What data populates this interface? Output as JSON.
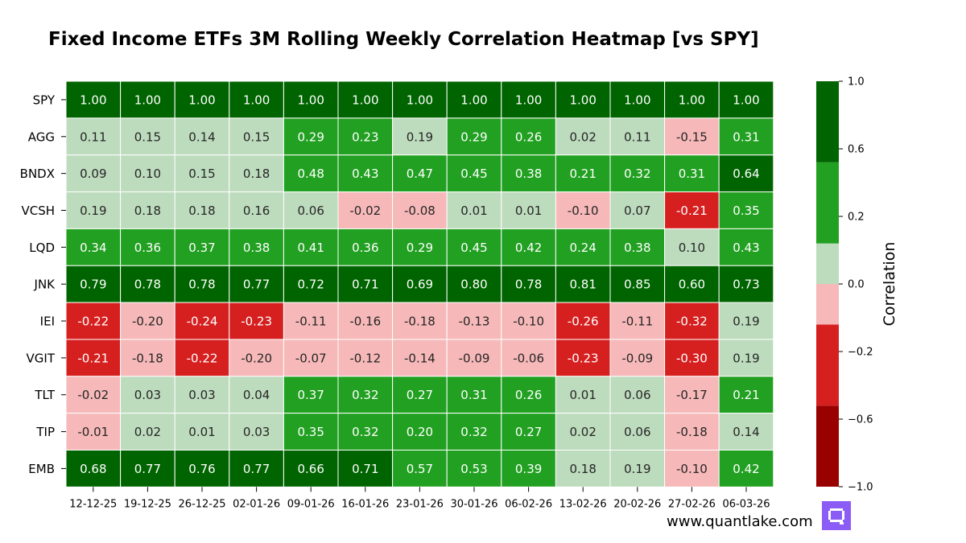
{
  "chart_data": {
    "type": "heatmap",
    "title": "Fixed Income ETFs 3M Rolling Weekly Correlation Heatmap [vs SPY]",
    "rows": [
      "SPY",
      "AGG",
      "BNDX",
      "VCSH",
      "LQD",
      "JNK",
      "IEI",
      "VGIT",
      "TLT",
      "TIP",
      "EMB"
    ],
    "columns": [
      "12-12-25",
      "19-12-25",
      "26-12-25",
      "02-01-26",
      "09-01-26",
      "16-01-26",
      "23-01-26",
      "30-01-26",
      "06-02-26",
      "13-02-26",
      "20-02-26",
      "27-02-26",
      "06-03-26"
    ],
    "values": [
      [
        1.0,
        1.0,
        1.0,
        1.0,
        1.0,
        1.0,
        1.0,
        1.0,
        1.0,
        1.0,
        1.0,
        1.0,
        1.0
      ],
      [
        0.11,
        0.15,
        0.14,
        0.15,
        0.29,
        0.23,
        0.19,
        0.29,
        0.26,
        0.02,
        0.11,
        -0.15,
        0.31
      ],
      [
        0.09,
        0.1,
        0.15,
        0.18,
        0.48,
        0.43,
        0.47,
        0.45,
        0.38,
        0.21,
        0.32,
        0.31,
        0.64
      ],
      [
        0.19,
        0.18,
        0.18,
        0.16,
        0.06,
        -0.02,
        -0.08,
        0.01,
        0.01,
        -0.1,
        0.07,
        -0.21,
        0.35
      ],
      [
        0.34,
        0.36,
        0.37,
        0.38,
        0.41,
        0.36,
        0.29,
        0.45,
        0.42,
        0.24,
        0.38,
        0.1,
        0.43
      ],
      [
        0.79,
        0.78,
        0.78,
        0.77,
        0.72,
        0.71,
        0.69,
        0.8,
        0.78,
        0.81,
        0.85,
        0.6,
        0.73
      ],
      [
        -0.22,
        -0.2,
        -0.24,
        -0.23,
        -0.11,
        -0.16,
        -0.18,
        -0.13,
        -0.1,
        -0.26,
        -0.11,
        -0.32,
        0.19
      ],
      [
        -0.21,
        -0.18,
        -0.22,
        -0.2,
        -0.07,
        -0.12,
        -0.14,
        -0.09,
        -0.06,
        -0.23,
        -0.09,
        -0.3,
        0.19
      ],
      [
        -0.02,
        0.03,
        0.03,
        0.04,
        0.37,
        0.32,
        0.27,
        0.31,
        0.26,
        0.01,
        0.06,
        -0.17,
        0.21
      ],
      [
        -0.01,
        0.02,
        0.01,
        0.03,
        0.35,
        0.32,
        0.2,
        0.32,
        0.27,
        0.02,
        0.06,
        -0.18,
        0.14
      ],
      [
        0.68,
        0.77,
        0.76,
        0.77,
        0.66,
        0.71,
        0.57,
        0.53,
        0.39,
        0.18,
        0.19,
        -0.1,
        0.42
      ]
    ],
    "colorbar": {
      "label": "Correlation",
      "range": [
        -1.0,
        1.0
      ],
      "bins": [
        {
          "from": -1.0,
          "to": -0.6,
          "color": "#990000"
        },
        {
          "from": -0.6,
          "to": -0.2,
          "color": "#d62020"
        },
        {
          "from": -0.2,
          "to": 0.0,
          "color": "#f6b8b8"
        },
        {
          "from": 0.0,
          "to": 0.2,
          "color": "#bddbbd"
        },
        {
          "from": 0.2,
          "to": 0.6,
          "color": "#22a022"
        },
        {
          "from": 0.6,
          "to": 1.0,
          "color": "#006400"
        }
      ],
      "ticks": [
        "1.0",
        "0.6",
        "0.2",
        "0.0",
        "−0.2",
        "−0.6",
        "−1.0"
      ]
    }
  },
  "watermark": {
    "text": "www.quantlake.com",
    "logo_color": "#8b5cf6"
  }
}
